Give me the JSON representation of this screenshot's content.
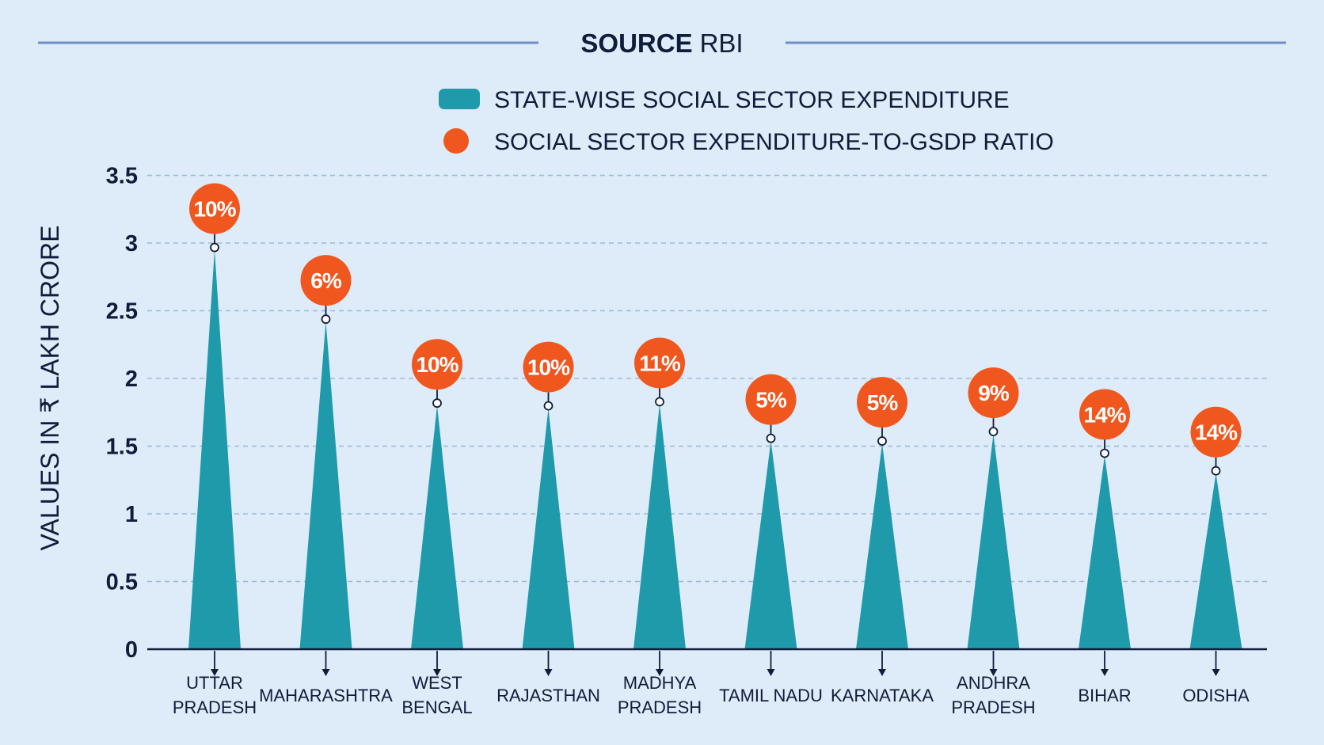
{
  "source": {
    "prefix": "SOURCE",
    "name": "RBI"
  },
  "colors": {
    "bar": "#1f9aab",
    "marker": "#f0571e",
    "text": "#0f1d3a",
    "grid": "#9fb9d6",
    "rule": "#6f8fc8",
    "background": "#deebf8"
  },
  "chart_data": {
    "type": "bar",
    "bar_shape": "triangle",
    "categories": [
      "UTTAR PRADESH",
      "MAHARASHTRA",
      "WEST BENGAL",
      "RAJASTHAN",
      "MADHYA PRADESH",
      "TAMIL NADU",
      "KARNATAKA",
      "ANDHRA PRADESH",
      "BIHAR",
      "ODISHA"
    ],
    "category_lines": [
      [
        "UTTAR",
        "PRADESH"
      ],
      [
        "MAHARASHTRA"
      ],
      [
        "WEST",
        "BENGAL"
      ],
      [
        "RAJASTHAN"
      ],
      [
        "MADHYA",
        "PRADESH"
      ],
      [
        "TAMIL NADU"
      ],
      [
        "KARNATAKA"
      ],
      [
        "ANDHRA",
        "PRADESH"
      ],
      [
        "BIHAR"
      ],
      [
        "ODISHA"
      ]
    ],
    "series": [
      {
        "name": "STATE-WISE SOCIAL SECTOR EXPENDITURE",
        "values": [
          2.95,
          2.42,
          1.8,
          1.78,
          1.81,
          1.54,
          1.52,
          1.59,
          1.43,
          1.3
        ]
      },
      {
        "name": "SOCIAL SECTOR EXPENDITURE-TO-GSDP RATIO",
        "values": [
          10,
          6,
          10,
          10,
          11,
          5,
          5,
          9,
          14,
          14
        ],
        "labels": [
          "10%",
          "6%",
          "10%",
          "10%",
          "11%",
          "5%",
          "5%",
          "9%",
          "14%",
          "14%"
        ]
      }
    ],
    "ylabel": "VALUES IN ₹ LAKH CRORE",
    "ylim": [
      0,
      3.5
    ],
    "yticks": [
      "0",
      "0.5",
      "1",
      "1.5",
      "2",
      "2.5",
      "3",
      "3.5"
    ],
    "grid": true,
    "legend_position": "top-center"
  }
}
